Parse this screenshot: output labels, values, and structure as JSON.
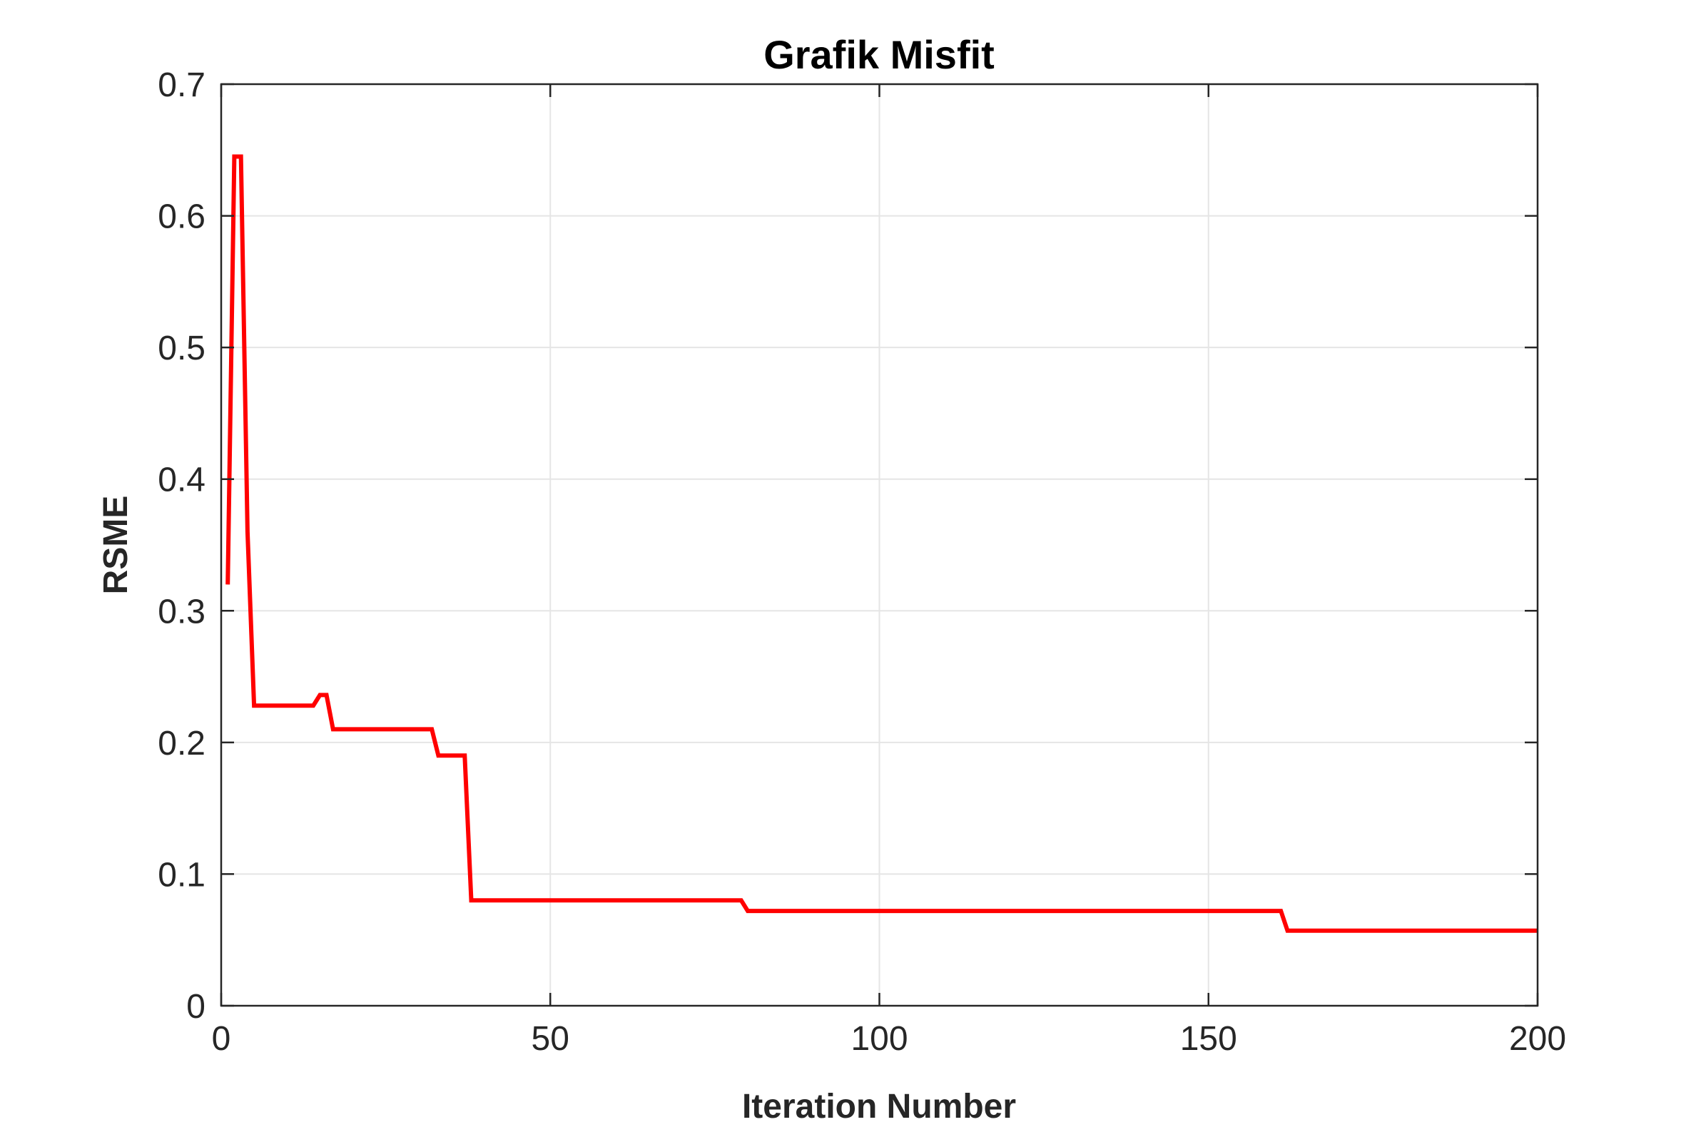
{
  "chart_data": {
    "type": "line",
    "title": "Grafik Misfit",
    "xlabel": "Iteration Number",
    "ylabel": "RSME",
    "xlim": [
      0,
      200
    ],
    "ylim": [
      0,
      0.7
    ],
    "xticks": [
      0,
      50,
      100,
      150,
      200
    ],
    "yticks": [
      0,
      0.1,
      0.2,
      0.3,
      0.4,
      0.5,
      0.6,
      0.7
    ],
    "xtick_labels": [
      "0",
      "50",
      "100",
      "150",
      "200"
    ],
    "ytick_labels": [
      "0",
      "0.1",
      "0.2",
      "0.3",
      "0.4",
      "0.5",
      "0.6",
      "0.7"
    ],
    "grid": true,
    "legend": "none",
    "colors": {
      "line": "#ff0000",
      "grid": "#e5e5e5",
      "axes": "#262626"
    },
    "series": [
      {
        "x": [
          1,
          2,
          3,
          4,
          5,
          14,
          15,
          16,
          17,
          32,
          33,
          37,
          38,
          79,
          80,
          161,
          162,
          200
        ],
        "y": [
          0.32,
          0.645,
          0.645,
          0.36,
          0.228,
          0.228,
          0.236,
          0.236,
          0.21,
          0.21,
          0.19,
          0.19,
          0.08,
          0.08,
          0.072,
          0.072,
          0.057,
          0.057
        ]
      }
    ]
  }
}
